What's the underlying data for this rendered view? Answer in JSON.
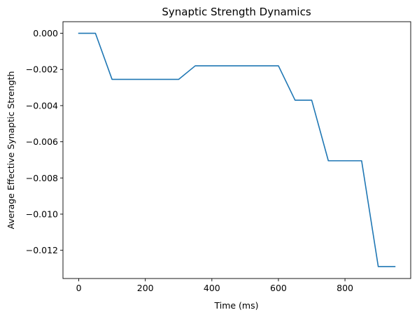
{
  "chart_data": {
    "type": "line",
    "title": "Synaptic Strength Dynamics",
    "xlabel": "Time (ms)",
    "ylabel": "Average Effective Synaptic Strength",
    "xlim": [
      -47.5,
      997.5
    ],
    "ylim": [
      -0.01356,
      0.00064
    ],
    "xticks": [
      0,
      200,
      400,
      600,
      800
    ],
    "xtick_labels": [
      "0",
      "200",
      "400",
      "600",
      "800"
    ],
    "yticks": [
      0.0,
      -0.002,
      -0.004,
      -0.006,
      -0.008,
      -0.01,
      -0.012
    ],
    "ytick_labels": [
      "0.000",
      "−0.002",
      "−0.004",
      "−0.006",
      "−0.008",
      "−0.010",
      "−0.012"
    ],
    "grid": false,
    "series": [
      {
        "color": "#1f77b4",
        "x": [
          0,
          50,
          100,
          150,
          200,
          250,
          300,
          350,
          400,
          450,
          500,
          550,
          600,
          650,
          700,
          750,
          800,
          850,
          900,
          950
        ],
        "y": [
          0.0,
          0.0,
          -0.00255,
          -0.00255,
          -0.00255,
          -0.00255,
          -0.00255,
          -0.0018,
          -0.0018,
          -0.0018,
          -0.0018,
          -0.0018,
          -0.0018,
          -0.0037,
          -0.0037,
          -0.00705,
          -0.00705,
          -0.00705,
          -0.0129,
          -0.0129
        ]
      }
    ]
  }
}
